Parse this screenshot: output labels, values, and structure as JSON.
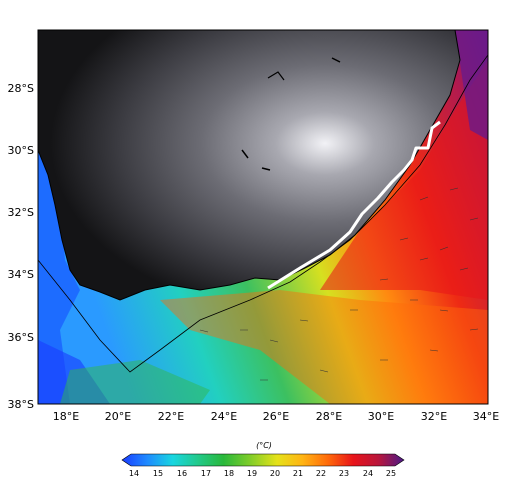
{
  "map": {
    "lon_ticks": [
      "18°E",
      "20°E",
      "22°E",
      "24°E",
      "26°E",
      "28°E",
      "30°E",
      "32°E",
      "34°E"
    ],
    "lat_ticks": [
      "28°S",
      "30°S",
      "32°S",
      "34°S",
      "36°S",
      "38°S"
    ],
    "colorbar": {
      "unit": "(°C)",
      "ticks": [
        "14",
        "15",
        "16",
        "17",
        "18",
        "19",
        "20",
        "21",
        "22",
        "23",
        "24",
        "25"
      ],
      "colors": [
        "#1a3cff",
        "#1f8bff",
        "#19d6e0",
        "#22c98a",
        "#29b83b",
        "#7ccc2a",
        "#e5e21a",
        "#ffb414",
        "#ff6a0a",
        "#e8141a",
        "#b8163c",
        "#7a1a8c",
        "#4b1a88"
      ]
    },
    "colors": {
      "land_dark": "#1a1a1a",
      "land_light": "#e8e8ee",
      "track": "#ffffff",
      "coastline": "#000000"
    }
  }
}
